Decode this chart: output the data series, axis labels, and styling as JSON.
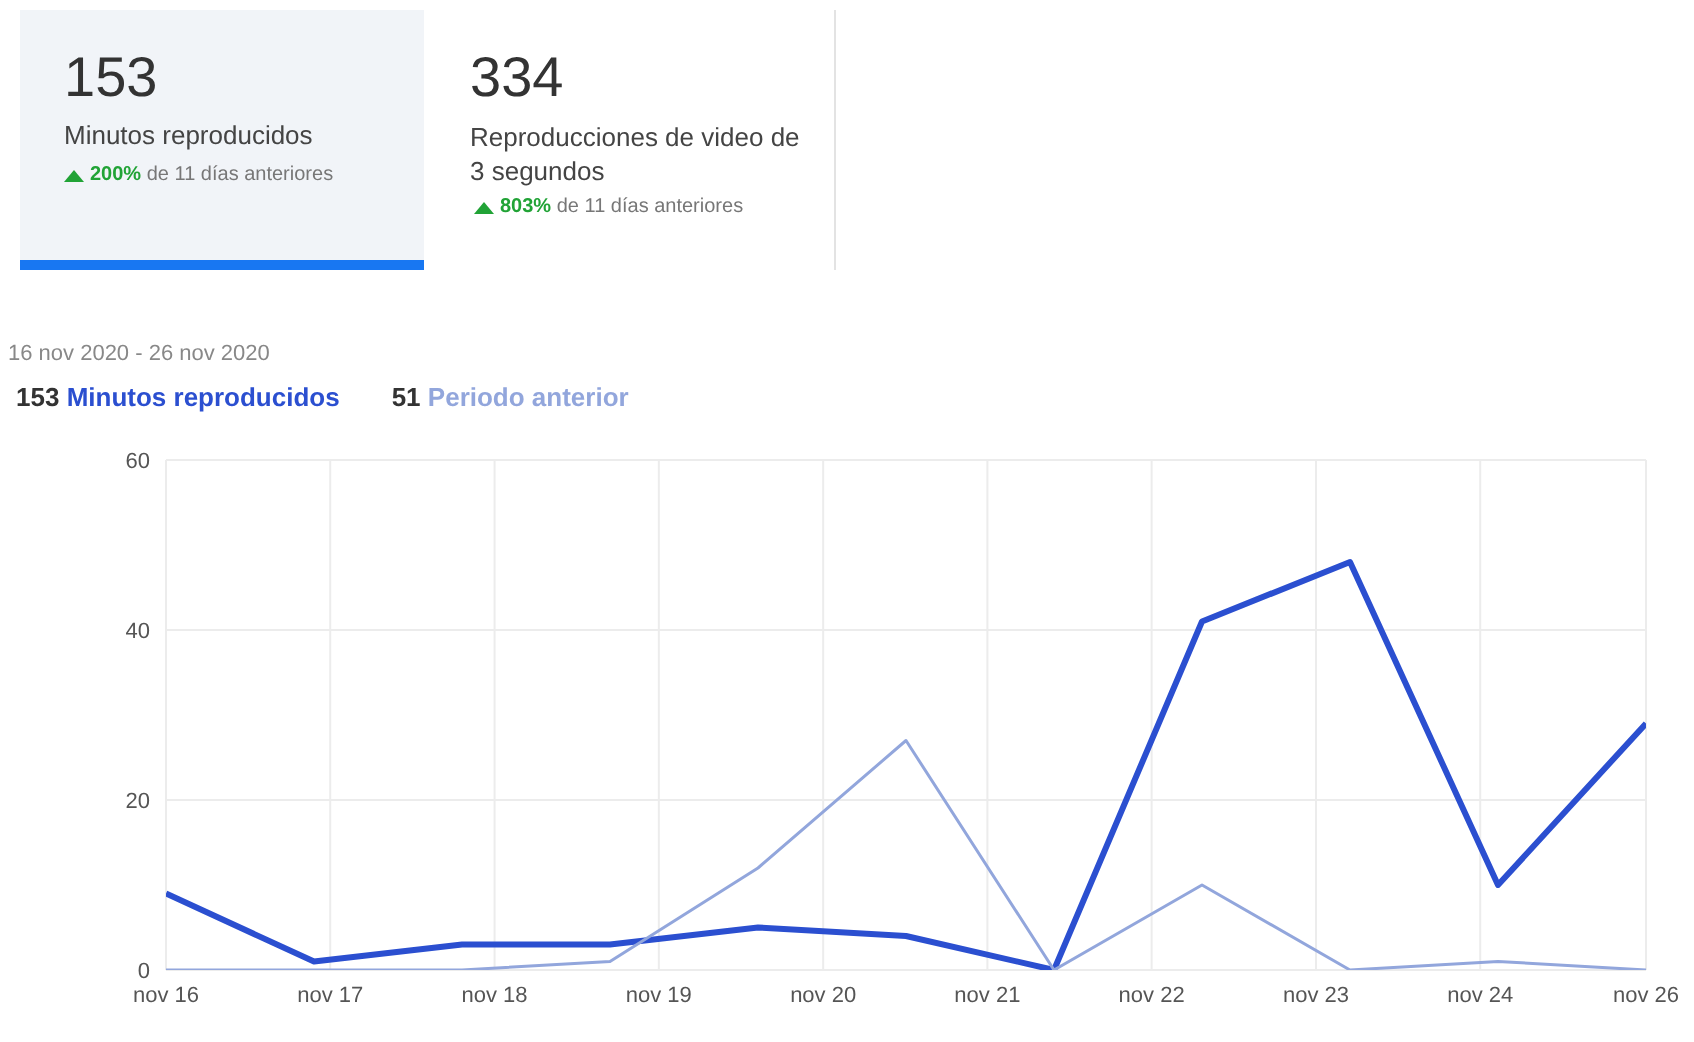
{
  "chart_data": {
    "type": "line",
    "subtitle": "16 nov 2020 - 26 nov 2020",
    "annotations": [
      "153",
      "Minutos reproducidos",
      "200% de 11 días anteriores",
      "334",
      "Reproducciones de video de 3 segundos",
      "803% de 11 días anteriores",
      "153",
      "51"
    ],
    "x": [
      "2020-11-16",
      "2020-11-17",
      "2020-11-18",
      "2020-11-19",
      "2020-11-20",
      "2020-11-21",
      "2020-11-22",
      "2020-11-23",
      "2020-11-24",
      "2020-11-25",
      "2020-11-26"
    ],
    "series": [
      {
        "name": "Minutos reproducidos",
        "color": "#2b4fd0",
        "values": [
          9,
          1,
          3,
          3,
          5,
          4,
          0,
          41,
          48,
          10,
          29
        ]
      },
      {
        "name": "Periodo anterior",
        "color": "#92a6dc",
        "values": [
          0,
          0,
          0,
          1,
          12,
          27,
          0,
          10,
          0,
          1,
          0
        ]
      }
    ],
    "xlim": [
      "2020-11-16",
      "2020-11-26"
    ],
    "xticks": [
      {
        "value": "2020-11-16",
        "label": "nov 16"
      },
      {
        "value": "2020-11-17T02:38",
        "label": "nov 17"
      },
      {
        "value": "2020-11-18T05:17",
        "label": "nov 18"
      },
      {
        "value": "2020-11-19T07:55",
        "label": "nov 19"
      },
      {
        "value": "2020-11-20T10:34",
        "label": "nov 20"
      },
      {
        "value": "2020-11-21T13:12",
        "label": "nov 21"
      },
      {
        "value": "2020-11-22T15:50",
        "label": "nov 22"
      },
      {
        "value": "2020-11-23T18:29",
        "label": "nov 23"
      },
      {
        "value": "2020-11-24T21:07",
        "label": "nov 24"
      },
      {
        "value": "2020-11-26",
        "label": "nov 26"
      }
    ],
    "ylim": [
      0,
      60
    ],
    "yticks": [
      0,
      20,
      40,
      60
    ],
    "grid": true,
    "legend": "top left",
    "marker": "none",
    "line_style": "solid"
  }
}
